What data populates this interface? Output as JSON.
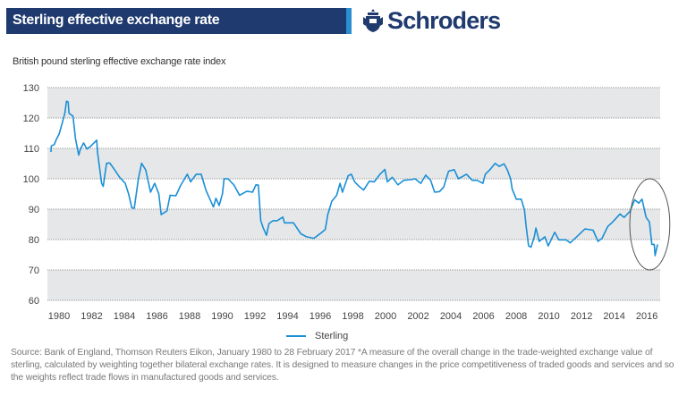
{
  "header": {
    "title": "Sterling effective exchange rate",
    "brand": "Schroders",
    "brand_color": "#1f3a6e",
    "accent_color": "#2a8fd0"
  },
  "chart_data": {
    "type": "line",
    "title": "",
    "subtitle": "British pound sterling effective exchange rate index",
    "xlabel": "",
    "ylabel": "",
    "xlim": [
      1980,
      2017.2
    ],
    "ylim": [
      60,
      130
    ],
    "x_ticks": [
      1980,
      1982,
      1984,
      1986,
      1988,
      1990,
      1992,
      1994,
      1996,
      1998,
      2000,
      2002,
      2004,
      2006,
      2008,
      2010,
      2012,
      2014,
      2016
    ],
    "x_tick_labels": [
      "1980",
      "1982",
      "1984",
      "1986",
      "1988",
      "1990",
      "1992",
      "1994",
      "1996",
      "1998",
      "2000",
      "2002",
      "2004",
      "2006",
      "2008",
      "2010",
      "2012",
      "2014",
      "2016"
    ],
    "y_ticks": [
      60,
      70,
      80,
      90,
      100,
      110,
      120,
      130
    ],
    "y_tick_labels": [
      "60",
      "70",
      "80",
      "90",
      "100",
      "110",
      "120",
      "130"
    ],
    "grid": true,
    "alternating_bands": true,
    "legend_position": "bottom-center",
    "series": [
      {
        "name": "Sterling",
        "color": "#1a8fd6",
        "x": [
          1980.0,
          1980.02,
          1980.2,
          1980.35,
          1980.5,
          1980.7,
          1980.85,
          1980.95,
          1981.05,
          1981.1,
          1981.35,
          1981.5,
          1981.7,
          1981.8,
          1982.0,
          1982.2,
          1982.45,
          1982.8,
          1982.85,
          1983.1,
          1983.2,
          1983.4,
          1983.6,
          1983.9,
          1984.2,
          1984.55,
          1984.75,
          1984.95,
          1985.1,
          1985.35,
          1985.55,
          1985.8,
          1986.1,
          1986.35,
          1986.6,
          1986.75,
          1987.1,
          1987.3,
          1987.65,
          1987.95,
          1988.35,
          1988.55,
          1988.9,
          1989.2,
          1989.5,
          1989.95,
          1990.1,
          1990.3,
          1990.5,
          1990.6,
          1990.85,
          1991.2,
          1991.55,
          1992.0,
          1992.35,
          1992.55,
          1992.7,
          1992.85,
          1993.0,
          1993.2,
          1993.35,
          1993.6,
          1993.85,
          1994.2,
          1994.3,
          1994.85,
          1995.3,
          1995.65,
          1996.1,
          1996.6,
          1996.8,
          1996.95,
          1997.2,
          1997.5,
          1997.7,
          1997.85,
          1998.2,
          1998.4,
          1998.6,
          1998.85,
          1999.15,
          1999.5,
          1999.8,
          2000.15,
          2000.45,
          2000.6,
          2000.9,
          2001.25,
          2001.6,
          2002.05,
          2002.3,
          2002.65,
          2002.95,
          2003.25,
          2003.5,
          2003.8,
          2004.05,
          2004.35,
          2004.7,
          2004.95,
          2005.45,
          2005.8,
          2006.1,
          2006.45,
          2006.6,
          2006.9,
          2007.2,
          2007.45,
          2007.75,
          2007.95,
          2008.15,
          2008.25,
          2008.5,
          2008.8,
          2009.0,
          2009.1,
          2009.25,
          2009.4,
          2009.6,
          2009.7,
          2009.9,
          2010.25,
          2010.45,
          2010.85,
          2011.1,
          2011.55,
          2011.8,
          2012.2,
          2012.7,
          2013.2,
          2013.5,
          2013.75,
          2014.1,
          2014.4,
          2014.85,
          2015.1,
          2015.45,
          2015.75,
          2016.0,
          2016.2,
          2016.45,
          2016.65,
          2016.8,
          2016.95,
          2017.0,
          2017.15
        ],
        "y": [
          108.8,
          110.8,
          111.3,
          113.2,
          114.7,
          118.6,
          121.6,
          125.5,
          125.3,
          121.6,
          120.6,
          113.2,
          107.8,
          109.8,
          111.8,
          109.8,
          110.8,
          112.7,
          108.8,
          98.5,
          97.5,
          105.1,
          105.2,
          102.9,
          100.5,
          98.5,
          95.1,
          90.4,
          90.3,
          100,
          105.1,
          102.9,
          95.6,
          98.5,
          95.1,
          88.2,
          89.4,
          94.6,
          94.4,
          97.9,
          101.5,
          99,
          101.5,
          101.5,
          96.1,
          90.7,
          93.6,
          91.2,
          95.1,
          100,
          100,
          98,
          94.6,
          95.9,
          95.6,
          98,
          97.9,
          86.2,
          83.8,
          81.4,
          85.3,
          86.2,
          86.2,
          87.4,
          85.5,
          85.5,
          81.9,
          80.9,
          80.4,
          82.4,
          83.3,
          88.2,
          92.6,
          94.6,
          98.5,
          95.6,
          101,
          101.5,
          99,
          97.6,
          96.3,
          99.2,
          99,
          101.5,
          103.1,
          99,
          100.5,
          98,
          99.5,
          99.7,
          100,
          98.5,
          101.2,
          99.5,
          95.6,
          95.8,
          97.3,
          102.5,
          103,
          100,
          101.5,
          99.5,
          99.5,
          98.5,
          101.5,
          103.1,
          105.1,
          104.1,
          104.9,
          102.9,
          100,
          96.6,
          93.3,
          93.3,
          89.7,
          84.3,
          77.9,
          77.5,
          80.9,
          83.8,
          79.4,
          80.9,
          77.9,
          82.4,
          79.9,
          79.9,
          78.9,
          80.9,
          83.5,
          83.1,
          79.4,
          80.4,
          84.3,
          85.8,
          88.4,
          87.3,
          89.2,
          93.1,
          92,
          93.3,
          87.3,
          85.8,
          78.4,
          78.4,
          74.7,
          78.4
        ]
      }
    ],
    "annotations": [
      {
        "type": "ellipse",
        "x_range": [
          2015.45,
          2017.9
        ],
        "y_range": [
          70,
          100
        ]
      }
    ]
  },
  "legend": {
    "items": [
      "Sterling"
    ]
  },
  "footer": {
    "source": "Source: Bank of England, Thomson Reuters Eikon, January 1980 to 28 February 2017 *A measure of the overall change in the trade-weighted exchange value of sterling, calculated by weighting together bilateral exchange rates. It is designed to measure changes in the price competitiveness of traded goods and services and so the weights reflect trade flows in manufactured goods and services."
  }
}
